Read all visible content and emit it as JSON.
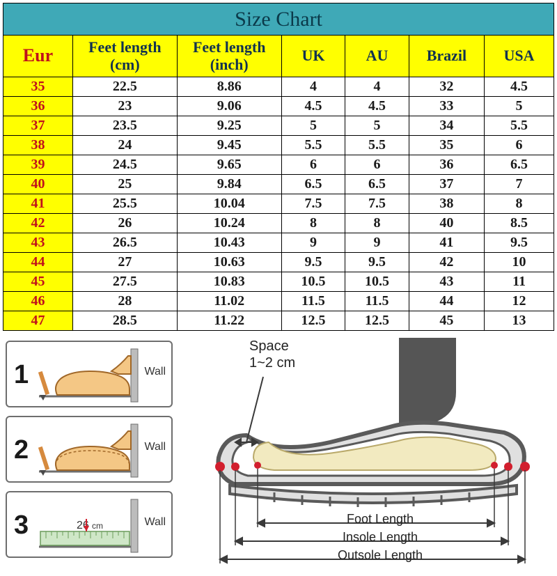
{
  "title": "Size Chart",
  "colors": {
    "title_bg": "#3fa9b7",
    "title_text": "#0b3a4a",
    "header_bg": "#ffff00",
    "header_text": "#12324f",
    "eur_text": "#c0111b",
    "border": "#000000",
    "body_text": "#1a1a1a",
    "cell_bg": "#ffffff"
  },
  "columns": {
    "eur": "Eur",
    "cm": "Feet length (cm)",
    "inch": "Feet length (inch)",
    "uk": "UK",
    "au": "AU",
    "brazil": "Brazil",
    "usa": "USA"
  },
  "column_widths_pct": {
    "eur": 12,
    "cm": 18,
    "inch": 18,
    "uk": 11,
    "au": 11,
    "brazil": 13,
    "usa": 12
  },
  "rows": [
    {
      "eur": "35",
      "cm": "22.5",
      "inch": "8.86",
      "uk": "4",
      "au": "4",
      "brazil": "32",
      "usa": "4.5"
    },
    {
      "eur": "36",
      "cm": "23",
      "inch": "9.06",
      "uk": "4.5",
      "au": "4.5",
      "brazil": "33",
      "usa": "5"
    },
    {
      "eur": "37",
      "cm": "23.5",
      "inch": "9.25",
      "uk": "5",
      "au": "5",
      "brazil": "34",
      "usa": "5.5"
    },
    {
      "eur": "38",
      "cm": "24",
      "inch": "9.45",
      "uk": "5.5",
      "au": "5.5",
      "brazil": "35",
      "usa": "6"
    },
    {
      "eur": "39",
      "cm": "24.5",
      "inch": "9.65",
      "uk": "6",
      "au": "6",
      "brazil": "36",
      "usa": "6.5"
    },
    {
      "eur": "40",
      "cm": "25",
      "inch": "9.84",
      "uk": "6.5",
      "au": "6.5",
      "brazil": "37",
      "usa": "7"
    },
    {
      "eur": "41",
      "cm": "25.5",
      "inch": "10.04",
      "uk": "7.5",
      "au": "7.5",
      "brazil": "38",
      "usa": "8"
    },
    {
      "eur": "42",
      "cm": "26",
      "inch": "10.24",
      "uk": "8",
      "au": "8",
      "brazil": "40",
      "usa": "8.5"
    },
    {
      "eur": "43",
      "cm": "26.5",
      "inch": "10.43",
      "uk": "9",
      "au": "9",
      "brazil": "41",
      "usa": "9.5"
    },
    {
      "eur": "44",
      "cm": "27",
      "inch": "10.63",
      "uk": "9.5",
      "au": "9.5",
      "brazil": "42",
      "usa": "10"
    },
    {
      "eur": "45",
      "cm": "27.5",
      "inch": "10.83",
      "uk": "10.5",
      "au": "10.5",
      "brazil": "43",
      "usa": "11"
    },
    {
      "eur": "46",
      "cm": "28",
      "inch": "11.02",
      "uk": "11.5",
      "au": "11.5",
      "brazil": "44",
      "usa": "12"
    },
    {
      "eur": "47",
      "cm": "28.5",
      "inch": "11.22",
      "uk": "12.5",
      "au": "12.5",
      "brazil": "45",
      "usa": "13"
    }
  ],
  "diagram": {
    "steps": [
      {
        "num": "1",
        "wall": "Wall"
      },
      {
        "num": "2",
        "wall": "Wall"
      },
      {
        "num": "3",
        "wall": "Wall",
        "ruler_value": "26",
        "ruler_unit": "cm"
      }
    ],
    "space_label": "Space",
    "space_value": "1~2 cm",
    "lengths": {
      "foot": "Foot Length",
      "insole": "Insole Length",
      "outsole": "Outsole Length"
    },
    "shoe_colors": {
      "outline": "#5a5a5a",
      "leg_fill": "#555555",
      "foot_fill": "#f2eac0",
      "sole_fill": "#e0e0e0",
      "marker": "#d21f2e",
      "arrow": "#3a3a3a"
    },
    "step_colors": {
      "foot_fill": "#f4c785",
      "foot_stroke": "#a06728",
      "pencil": "#d68a3e",
      "wall": "#a9a9a9",
      "floor": "#6e6e6e",
      "ruler_fill": "#cfe7c7",
      "ruler_stroke": "#6b9c5b"
    }
  }
}
